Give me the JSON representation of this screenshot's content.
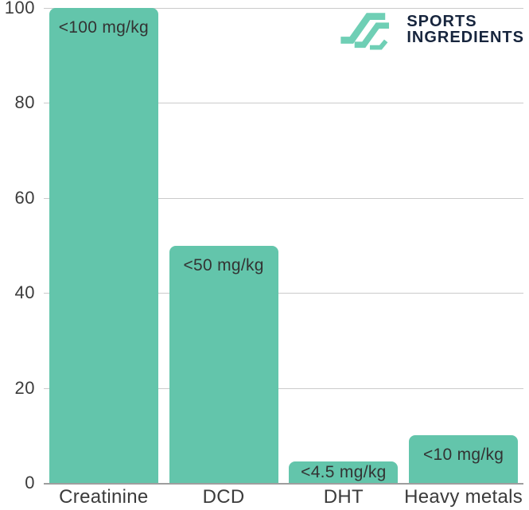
{
  "logo": {
    "line1": "SPORTS",
    "line2": "INGREDIENTS",
    "text_color": "#17253D",
    "icon_color": "#6FCFB5"
  },
  "chart_data": {
    "type": "bar",
    "title": "",
    "xlabel": "",
    "ylabel": "",
    "categories": [
      "Creatinine",
      "DCD",
      "DHT",
      "Heavy metals"
    ],
    "values": [
      100,
      50,
      4.5,
      10
    ],
    "bar_labels": [
      "<100 mg/kg",
      "<50 mg/kg",
      "<4.5 mg/kg",
      "<10 mg/kg"
    ],
    "ylim": [
      0,
      100
    ],
    "yticks": [
      0,
      20,
      40,
      60,
      80,
      100
    ],
    "grid": true,
    "legend": false,
    "bar_color": "#63C5AB",
    "gridline_color": "#CBCBCB",
    "axis_line_color": "#9E9E9E",
    "tick_label_color": "#3B3B3B",
    "bar_label_color": "#333333",
    "category_label_color": "#3B3B3B"
  }
}
